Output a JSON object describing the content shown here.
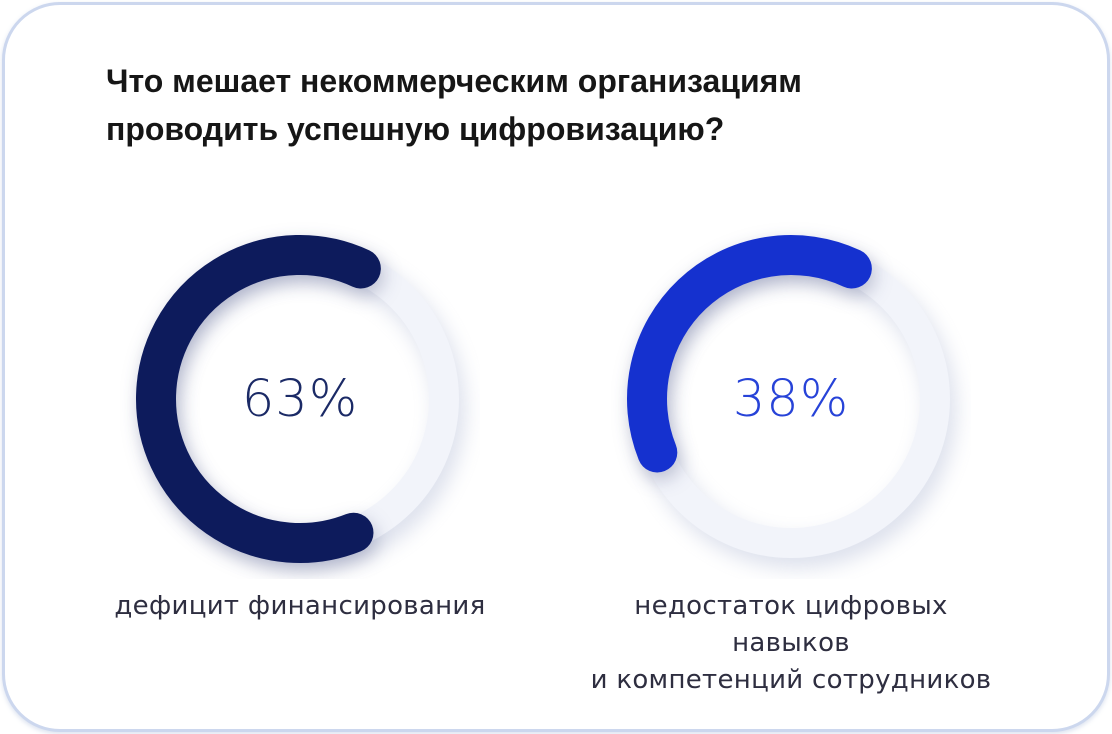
{
  "title": {
    "line1": "Что мешает некоммерческим организациям",
    "line2": "проводить успешную цифровизацию?"
  },
  "theme": {
    "card_background": "#ffffff",
    "card_border_color": "#ccd7ee",
    "title_color": "#161616",
    "caption_color": "#2e2e40"
  },
  "chart_data": {
    "type": "donut",
    "title": "Что мешает некоммерческим организациям проводить успешную цифровизацию?",
    "start_angle_deg": 25,
    "direction": "counterclockwise",
    "charts": [
      {
        "value": 63,
        "display": "63%",
        "caption_lines": [
          "дефицит финансирования"
        ],
        "arc_color": "#0d1b5c",
        "value_color": "#1b2a66",
        "track_color": "#f2f4fa"
      },
      {
        "value": 38,
        "display": "38%",
        "caption_lines": [
          "недостаток цифровых навыков",
          "и компетенций сотрудников"
        ],
        "arc_color": "#1531cf",
        "value_color": "#2743d8",
        "track_color": "#f2f4fa"
      }
    ]
  }
}
